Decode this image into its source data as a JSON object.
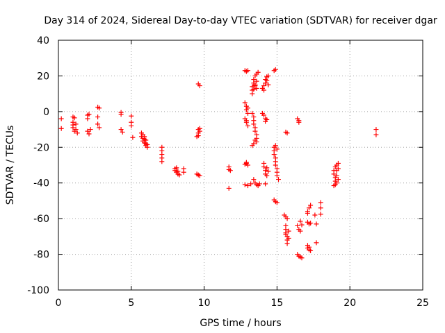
{
  "chart_data": {
    "type": "scatter",
    "title": "Day 314 of 2024, Sidereal Day-to-day VTEC variation (SDTVAR) for receiver dgar",
    "xlabel": "GPS time / hours",
    "ylabel": "SDTVAR / TECUs",
    "xlim": [
      0,
      25
    ],
    "ylim": [
      -100,
      40
    ],
    "xticks": [
      0,
      5,
      10,
      15,
      20,
      25
    ],
    "yticks": [
      -100,
      -80,
      -60,
      -40,
      -20,
      0,
      20,
      40
    ],
    "xtick_labels": [
      "0",
      "5",
      "10",
      "15",
      "20",
      "25"
    ],
    "ytick_labels": [
      "-100",
      "-80",
      "-60",
      "-40",
      "-20",
      "0",
      "20",
      "40"
    ],
    "grid": true,
    "marker": "+",
    "color": "#ff0000",
    "series": [
      {
        "name": "SDTVAR",
        "points": [
          [
            0.2,
            -4
          ],
          [
            0.2,
            -9.5
          ],
          [
            1.0,
            -3
          ],
          [
            1.0,
            -6
          ],
          [
            1.0,
            -9
          ],
          [
            1.1,
            -11
          ],
          [
            1.1,
            -3.5
          ],
          [
            1.2,
            -7
          ],
          [
            1.2,
            -10
          ],
          [
            1.3,
            -12
          ],
          [
            1.0,
            -7.5
          ],
          [
            2.0,
            -2
          ],
          [
            2.0,
            -4
          ],
          [
            2.0,
            -11
          ],
          [
            2.1,
            -12.5
          ],
          [
            2.1,
            -1.5
          ],
          [
            2.2,
            -10
          ],
          [
            2.7,
            2.5
          ],
          [
            2.7,
            -3
          ],
          [
            2.7,
            -7
          ],
          [
            2.8,
            -9
          ],
          [
            2.8,
            2
          ],
          [
            4.3,
            -0.5
          ],
          [
            4.3,
            -1.5
          ],
          [
            4.3,
            -10
          ],
          [
            4.4,
            -11.5
          ],
          [
            5.0,
            -2.5
          ],
          [
            5.0,
            -6
          ],
          [
            5.0,
            -8
          ],
          [
            5.1,
            -14.5
          ],
          [
            5.7,
            -12
          ],
          [
            5.7,
            -14
          ],
          [
            5.8,
            -15
          ],
          [
            5.8,
            -13
          ],
          [
            5.8,
            -16.5
          ],
          [
            5.9,
            -17.5
          ],
          [
            5.9,
            -15.5
          ],
          [
            6.0,
            -18
          ],
          [
            6.0,
            -19
          ],
          [
            6.0,
            -16
          ],
          [
            6.1,
            -20
          ],
          [
            6.1,
            -18.5
          ],
          [
            5.9,
            -14
          ],
          [
            7.1,
            -20
          ],
          [
            7.1,
            -22
          ],
          [
            7.1,
            -24
          ],
          [
            7.1,
            -26
          ],
          [
            7.1,
            -28
          ],
          [
            8.0,
            -32
          ],
          [
            8.0,
            -33
          ],
          [
            8.1,
            -34
          ],
          [
            8.1,
            -31.5
          ],
          [
            8.2,
            -35
          ],
          [
            8.2,
            -33.5
          ],
          [
            8.3,
            -35.5
          ],
          [
            8.6,
            -32
          ],
          [
            8.6,
            -34
          ],
          [
            9.5,
            -35
          ],
          [
            9.6,
            -35.5
          ],
          [
            9.7,
            -36
          ],
          [
            9.6,
            -10
          ],
          [
            9.6,
            -12
          ],
          [
            9.7,
            -9.5
          ],
          [
            9.7,
            -11
          ],
          [
            9.6,
            -13.5
          ],
          [
            9.5,
            -14
          ],
          [
            9.6,
            15.5
          ],
          [
            9.7,
            14.5
          ],
          [
            11.7,
            -31
          ],
          [
            11.7,
            -32.5
          ],
          [
            11.8,
            -33
          ],
          [
            11.7,
            -43
          ],
          [
            12.8,
            23
          ],
          [
            12.9,
            22.5
          ],
          [
            13.0,
            23
          ],
          [
            12.8,
            5
          ],
          [
            12.9,
            3
          ],
          [
            12.9,
            1
          ],
          [
            13.0,
            -1
          ],
          [
            12.8,
            -4
          ],
          [
            12.9,
            -6
          ],
          [
            13.0,
            -8
          ],
          [
            12.9,
            -5
          ],
          [
            13.0,
            2
          ],
          [
            12.8,
            -29.5
          ],
          [
            12.9,
            -28.5
          ],
          [
            13.0,
            -30
          ],
          [
            12.9,
            -29
          ],
          [
            12.8,
            -41
          ],
          [
            13.0,
            -41.5
          ],
          [
            13.2,
            -40.5
          ],
          [
            13.3,
            10
          ],
          [
            13.3,
            12
          ],
          [
            13.3,
            14
          ],
          [
            13.4,
            16
          ],
          [
            13.4,
            18
          ],
          [
            13.5,
            20
          ],
          [
            13.5,
            14.5
          ],
          [
            13.6,
            17
          ],
          [
            13.6,
            21
          ],
          [
            13.7,
            22
          ],
          [
            13.4,
            12.5
          ],
          [
            13.5,
            15
          ],
          [
            13.6,
            13
          ],
          [
            13.3,
            -1
          ],
          [
            13.4,
            -3
          ],
          [
            13.4,
            -5
          ],
          [
            13.4,
            -7
          ],
          [
            13.5,
            -9
          ],
          [
            13.5,
            -11
          ],
          [
            13.6,
            -13
          ],
          [
            13.6,
            -15
          ],
          [
            13.6,
            -17
          ],
          [
            13.4,
            -18
          ],
          [
            13.3,
            -19
          ],
          [
            13.5,
            -16
          ],
          [
            13.4,
            -38
          ],
          [
            13.5,
            -40
          ],
          [
            13.6,
            -41
          ],
          [
            13.7,
            -41.5
          ],
          [
            13.8,
            -40.5
          ],
          [
            14.0,
            13
          ],
          [
            14.1,
            14.5
          ],
          [
            14.2,
            16
          ],
          [
            14.2,
            18
          ],
          [
            14.3,
            17.5
          ],
          [
            14.4,
            15
          ],
          [
            14.1,
            12
          ],
          [
            14.3,
            19.5
          ],
          [
            14.4,
            20
          ],
          [
            14.0,
            -1
          ],
          [
            14.1,
            -2
          ],
          [
            14.2,
            -4
          ],
          [
            14.3,
            -4.5
          ],
          [
            14.2,
            -5.5
          ],
          [
            14.1,
            -29
          ],
          [
            14.1,
            -31
          ],
          [
            14.2,
            -33
          ],
          [
            14.2,
            -35
          ],
          [
            14.3,
            -36
          ],
          [
            14.3,
            -31.5
          ],
          [
            14.4,
            -33.5
          ],
          [
            14.2,
            -40.5
          ],
          [
            14.8,
            23
          ],
          [
            14.9,
            23.5
          ],
          [
            14.8,
            -20
          ],
          [
            14.8,
            -22
          ],
          [
            14.8,
            -24
          ],
          [
            14.9,
            -26
          ],
          [
            14.9,
            -28
          ],
          [
            14.9,
            -30
          ],
          [
            15.0,
            -32
          ],
          [
            15.0,
            -34
          ],
          [
            15.0,
            -36
          ],
          [
            15.1,
            -38
          ],
          [
            14.9,
            -19
          ],
          [
            15.0,
            -21
          ],
          [
            14.8,
            -49.5
          ],
          [
            14.9,
            -50.5
          ],
          [
            15.0,
            -51
          ],
          [
            15.6,
            -11.5
          ],
          [
            15.7,
            -12
          ],
          [
            15.5,
            -58
          ],
          [
            15.6,
            -59
          ],
          [
            15.7,
            -60
          ],
          [
            15.6,
            -64
          ],
          [
            15.6,
            -66
          ],
          [
            15.6,
            -68
          ],
          [
            15.7,
            -70
          ],
          [
            15.7,
            -72
          ],
          [
            15.7,
            -74
          ],
          [
            15.8,
            -71
          ],
          [
            15.8,
            -67
          ],
          [
            15.6,
            -69
          ],
          [
            16.4,
            -4
          ],
          [
            16.5,
            -5
          ],
          [
            16.5,
            -6
          ],
          [
            16.4,
            -64
          ],
          [
            16.5,
            -66
          ],
          [
            16.6,
            -67
          ],
          [
            16.7,
            -63.5
          ],
          [
            16.6,
            -61.5
          ],
          [
            16.4,
            -80
          ],
          [
            16.5,
            -81
          ],
          [
            16.6,
            -81.5
          ],
          [
            16.7,
            -82
          ],
          [
            17.1,
            -56
          ],
          [
            17.2,
            -54
          ],
          [
            17.3,
            -52.5
          ],
          [
            17.1,
            -57
          ],
          [
            17.1,
            -62
          ],
          [
            17.2,
            -63
          ],
          [
            17.3,
            -62.5
          ],
          [
            17.1,
            -75
          ],
          [
            17.2,
            -76
          ],
          [
            17.2,
            -77.5
          ],
          [
            17.3,
            -78
          ],
          [
            17.1,
            -76.5
          ],
          [
            17.6,
            -58
          ],
          [
            17.7,
            -63
          ],
          [
            17.7,
            -73.5
          ],
          [
            18.0,
            -51
          ],
          [
            18.0,
            -54
          ],
          [
            18.0,
            -57.5
          ],
          [
            18.9,
            -33
          ],
          [
            18.9,
            -35
          ],
          [
            19.0,
            -31
          ],
          [
            19.0,
            -37
          ],
          [
            19.0,
            -39
          ],
          [
            19.1,
            -30
          ],
          [
            19.1,
            -36
          ],
          [
            19.2,
            -29
          ],
          [
            19.2,
            -38
          ],
          [
            19.1,
            -40
          ],
          [
            19.0,
            -41
          ],
          [
            18.9,
            -41.5
          ],
          [
            19.1,
            -33
          ],
          [
            19.2,
            -32
          ],
          [
            21.8,
            -10
          ],
          [
            21.8,
            -13
          ]
        ]
      }
    ]
  }
}
